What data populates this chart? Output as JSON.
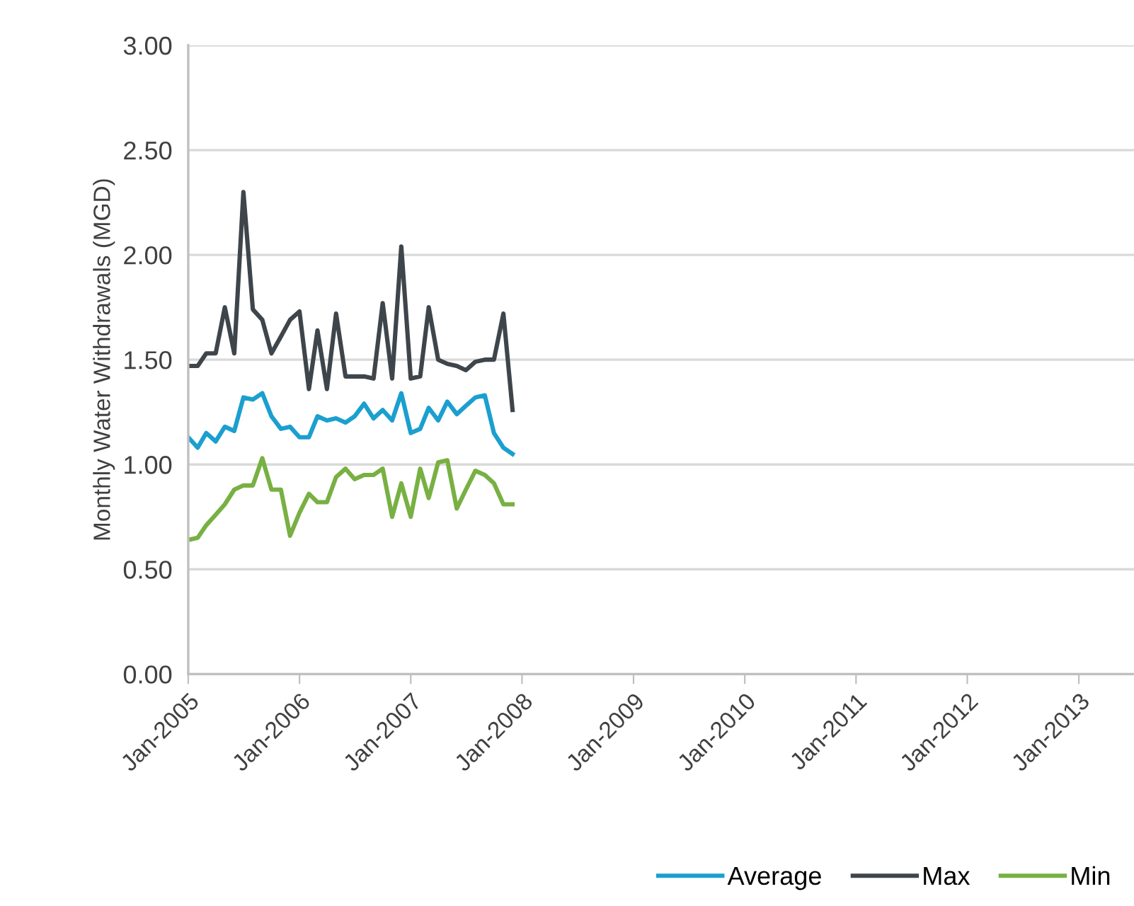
{
  "chart_data": {
    "type": "line",
    "ylabel": "Monthly Water Withdrawals (MGD)",
    "x": [
      "2005-01",
      "2005-02",
      "2005-03",
      "2005-04",
      "2005-05",
      "2005-06",
      "2005-07",
      "2005-08",
      "2005-09",
      "2005-10",
      "2005-11",
      "2005-12",
      "2006-01",
      "2006-02",
      "2006-03",
      "2006-04",
      "2006-05",
      "2006-06",
      "2006-07",
      "2006-08",
      "2006-09",
      "2006-10",
      "2006-11",
      "2006-12",
      "2007-01",
      "2007-02",
      "2007-03",
      "2007-04",
      "2007-05",
      "2007-06",
      "2007-07",
      "2007-08",
      "2007-09",
      "2007-10",
      "2007-11",
      "2007-12"
    ],
    "series": [
      {
        "name": "Average",
        "color": "#1b9fcf",
        "values": [
          1.13,
          1.08,
          1.15,
          1.11,
          1.18,
          1.16,
          1.32,
          1.31,
          1.34,
          1.23,
          1.17,
          1.18,
          1.13,
          1.13,
          1.23,
          1.21,
          1.22,
          1.2,
          1.23,
          1.29,
          1.22,
          1.26,
          1.21,
          1.34,
          1.15,
          1.17,
          1.27,
          1.21,
          1.3,
          1.24,
          1.28,
          1.32,
          1.33,
          1.15,
          1.08,
          1.05
        ]
      },
      {
        "name": "Max",
        "color": "#3e454b",
        "values": [
          1.47,
          1.47,
          1.53,
          1.53,
          1.75,
          1.53,
          2.3,
          1.74,
          1.69,
          1.53,
          1.61,
          1.69,
          1.73,
          1.36,
          1.64,
          1.36,
          1.72,
          1.42,
          1.42,
          1.42,
          1.41,
          1.77,
          1.41,
          2.04,
          1.41,
          1.42,
          1.75,
          1.5,
          1.48,
          1.47,
          1.45,
          1.49,
          1.5,
          1.5,
          1.72,
          1.26
        ]
      },
      {
        "name": "Min",
        "color": "#78b043",
        "values": [
          0.64,
          0.65,
          0.71,
          0.76,
          0.81,
          0.88,
          0.9,
          0.9,
          1.03,
          0.88,
          0.88,
          0.66,
          0.77,
          0.86,
          0.82,
          0.82,
          0.94,
          0.98,
          0.93,
          0.95,
          0.95,
          0.98,
          0.75,
          0.91,
          0.75,
          0.98,
          0.84,
          1.01,
          1.02,
          0.79,
          0.88,
          0.97,
          0.95,
          0.91,
          0.81,
          0.81
        ]
      }
    ],
    "xlim": [
      "2005-01",
      "2013-07"
    ],
    "xticks": [
      {
        "value": "2005-01",
        "label": "Jan-2005"
      },
      {
        "value": "2006-01",
        "label": "Jan-2006"
      },
      {
        "value": "2007-01",
        "label": "Jan-2007"
      },
      {
        "value": "2008-01",
        "label": "Jan-2008"
      },
      {
        "value": "2009-01",
        "label": "Jan-2009"
      },
      {
        "value": "2010-01",
        "label": "Jan-2010"
      },
      {
        "value": "2011-01",
        "label": "Jan-2011"
      },
      {
        "value": "2012-01",
        "label": "Jan-2012"
      },
      {
        "value": "2013-01",
        "label": "Jan-2013"
      }
    ],
    "ylim": [
      0,
      3
    ],
    "yticks": [
      {
        "value": 0,
        "label": "0.00"
      },
      {
        "value": 0.5,
        "label": "0.50"
      },
      {
        "value": 1,
        "label": "1.00"
      },
      {
        "value": 1.5,
        "label": "1.50"
      },
      {
        "value": 2,
        "label": "2.00"
      },
      {
        "value": 2.5,
        "label": "2.50"
      },
      {
        "value": 3,
        "label": "3.00"
      }
    ],
    "grid": "y",
    "legend": "bottom right",
    "marker": "none",
    "line_style": "solid"
  }
}
